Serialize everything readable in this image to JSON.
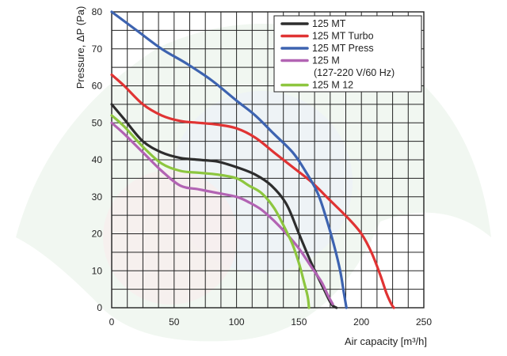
{
  "chart_data": {
    "type": "line",
    "xlabel": "Air capacity [m³/h]",
    "ylabel": "Pressure, ΔP (Pa)",
    "xlim": [
      0,
      250
    ],
    "ylim": [
      0,
      80
    ],
    "x_ticks": [
      "0",
      "50",
      "100",
      "150",
      "200",
      "250"
    ],
    "y_ticks": [
      "0",
      "10",
      "20",
      "30",
      "40",
      "50",
      "60",
      "70",
      "80"
    ],
    "grid": true,
    "legend_position": "top-right",
    "legend_note": "(127-220 V/60 Hz)",
    "series": [
      {
        "name": "125 MT",
        "color": "#2d2d2d",
        "points": [
          [
            0,
            55
          ],
          [
            10,
            51
          ],
          [
            25,
            45
          ],
          [
            40,
            42
          ],
          [
            55,
            40.5
          ],
          [
            70,
            40
          ],
          [
            85,
            39.5
          ],
          [
            100,
            38
          ],
          [
            115,
            36
          ],
          [
            128,
            33
          ],
          [
            140,
            28
          ],
          [
            150,
            20
          ],
          [
            160,
            12
          ],
          [
            170,
            5
          ],
          [
            176,
            1
          ],
          [
            180,
            0
          ]
        ]
      },
      {
        "name": "125 MT Turbo",
        "color": "#e03333",
        "points": [
          [
            0,
            63
          ],
          [
            10,
            60
          ],
          [
            25,
            55
          ],
          [
            40,
            52
          ],
          [
            55,
            50.5
          ],
          [
            70,
            50
          ],
          [
            85,
            49.5
          ],
          [
            100,
            48.5
          ],
          [
            115,
            46
          ],
          [
            130,
            42
          ],
          [
            145,
            38
          ],
          [
            160,
            34
          ],
          [
            175,
            29
          ],
          [
            190,
            24
          ],
          [
            200,
            20
          ],
          [
            208,
            15
          ],
          [
            215,
            9
          ],
          [
            220,
            4
          ],
          [
            224,
            1
          ],
          [
            226,
            0
          ]
        ]
      },
      {
        "name": "125 MT Press",
        "color": "#3d63b0",
        "points": [
          [
            0,
            80
          ],
          [
            20,
            75
          ],
          [
            40,
            70
          ],
          [
            60,
            66
          ],
          [
            80,
            61.5
          ],
          [
            100,
            56
          ],
          [
            115,
            52
          ],
          [
            130,
            47
          ],
          [
            145,
            42
          ],
          [
            155,
            37
          ],
          [
            165,
            31
          ],
          [
            172,
            24
          ],
          [
            178,
            17
          ],
          [
            183,
            10
          ],
          [
            186,
            4
          ],
          [
            188,
            0
          ]
        ]
      },
      {
        "name": "125 M",
        "color": "#b263b3",
        "points": [
          [
            0,
            50
          ],
          [
            10,
            47
          ],
          [
            25,
            42
          ],
          [
            40,
            37
          ],
          [
            55,
            33
          ],
          [
            70,
            32
          ],
          [
            85,
            31
          ],
          [
            100,
            30
          ],
          [
            110,
            28.5
          ],
          [
            120,
            26.5
          ],
          [
            130,
            23.5
          ],
          [
            140,
            20
          ],
          [
            150,
            16
          ],
          [
            160,
            11
          ],
          [
            168,
            7
          ],
          [
            173,
            3.5
          ],
          [
            177,
            1
          ]
        ]
      },
      {
        "name": "125 M 12",
        "color": "#8dc63f",
        "points": [
          [
            0,
            52
          ],
          [
            10,
            49
          ],
          [
            25,
            43.5
          ],
          [
            40,
            39
          ],
          [
            55,
            37
          ],
          [
            70,
            36.5
          ],
          [
            85,
            36
          ],
          [
            100,
            35
          ],
          [
            110,
            33
          ],
          [
            120,
            31
          ],
          [
            130,
            27
          ],
          [
            138,
            22
          ],
          [
            145,
            17
          ],
          [
            150,
            12
          ],
          [
            154,
            7
          ],
          [
            157,
            3
          ],
          [
            158,
            0
          ]
        ]
      }
    ]
  }
}
